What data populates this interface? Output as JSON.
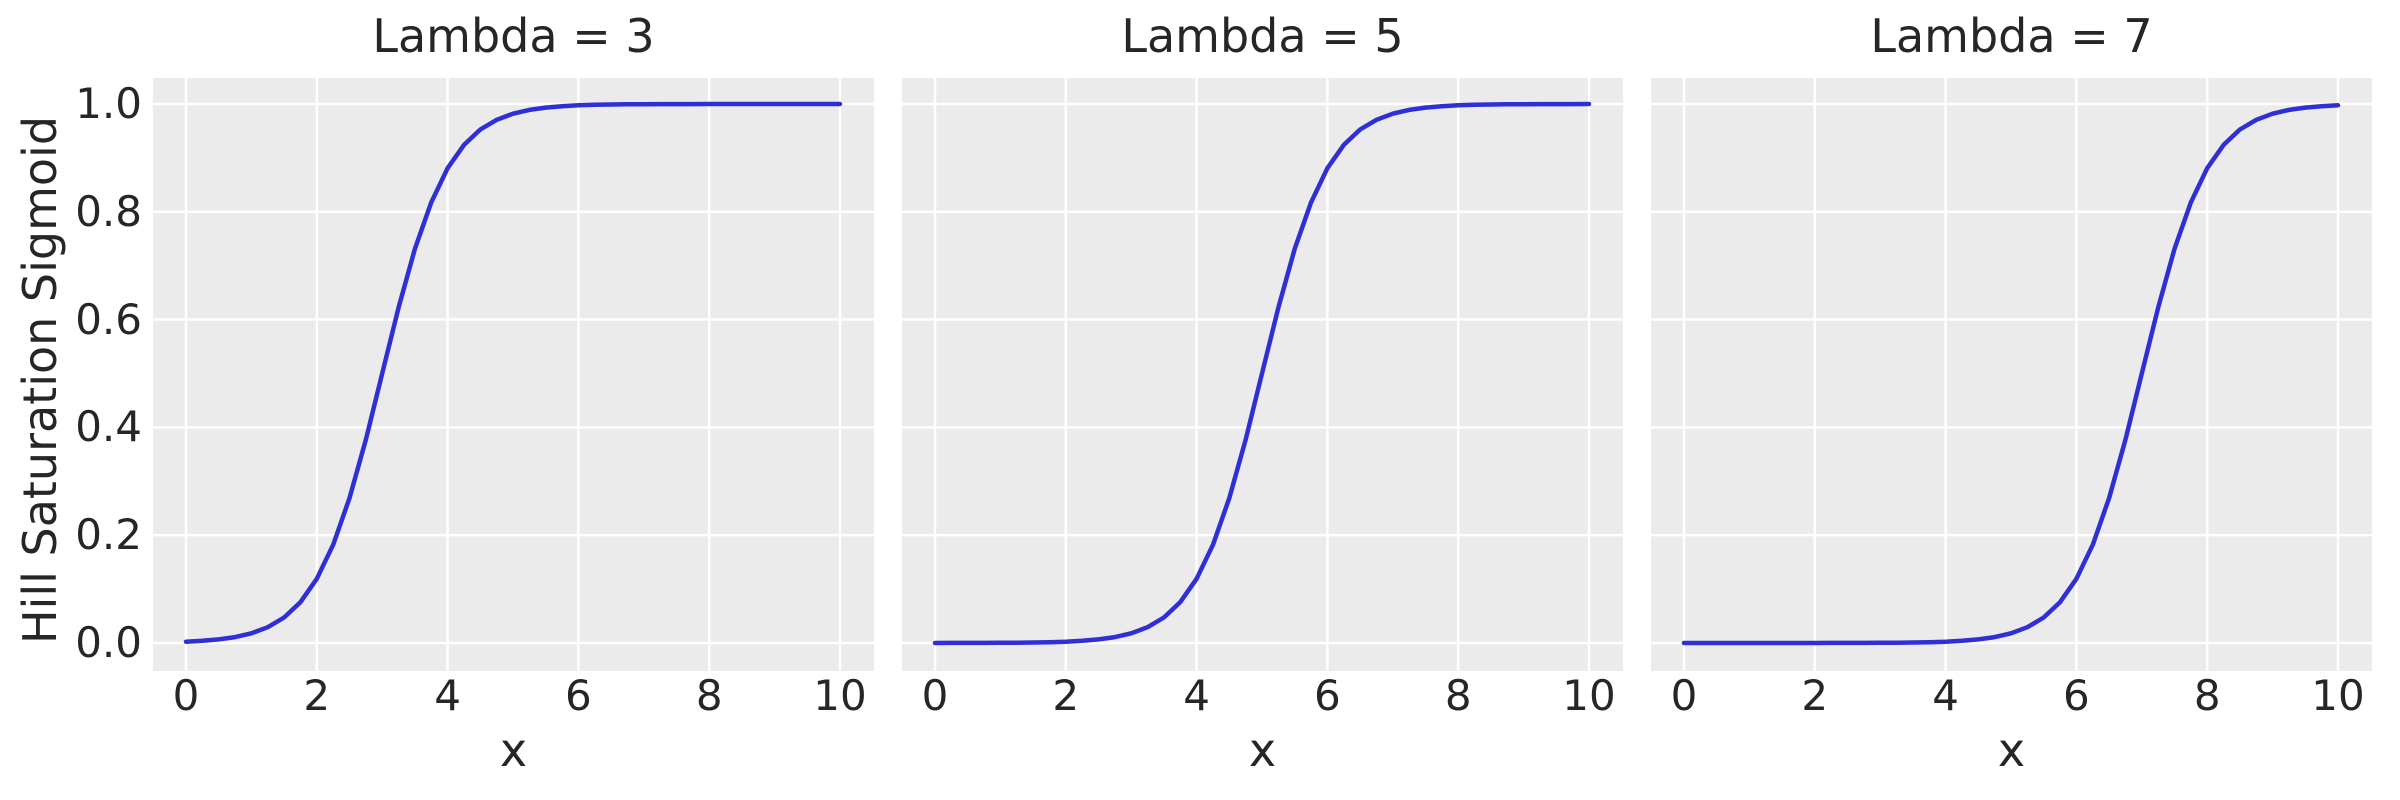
{
  "figure": {
    "xlabel": "x",
    "ylabel": "Hill Saturation Sigmoid"
  },
  "panels": [
    {
      "title": "Lambda = 3"
    },
    {
      "title": "Lambda = 5"
    },
    {
      "title": "Lambda = 7"
    }
  ],
  "axes": {
    "x_tick_labels": [
      "0",
      "2",
      "4",
      "6",
      "8",
      "10"
    ],
    "x_tick_values": [
      0,
      2,
      4,
      6,
      8,
      10
    ],
    "y_tick_labels": [
      "0.0",
      "0.2",
      "0.4",
      "0.6",
      "0.8",
      "1.0"
    ],
    "y_tick_values": [
      0,
      0.2,
      0.4,
      0.6,
      0.8,
      1.0
    ]
  },
  "colors": {
    "figure_background": "#ffffff",
    "plot_background": "#ebebeb",
    "grid": "#ffffff",
    "line": "#2f2fd6",
    "text": "#262626"
  },
  "chart_data": {
    "type": "line",
    "xlabel": "x",
    "ylabel": "Hill Saturation Sigmoid",
    "xlim": [
      0,
      10
    ],
    "ylim": [
      0,
      1
    ],
    "grid": true,
    "legend": false,
    "subplot_titles": [
      "Lambda = 3",
      "Lambda = 5",
      "Lambda = 7"
    ],
    "curve_note": "Saturating sigmoid rising from 0 to 1 with midpoint at x = lambda",
    "x": [
      0,
      0.25,
      0.5,
      0.75,
      1,
      1.25,
      1.5,
      1.75,
      2,
      2.25,
      2.5,
      2.75,
      3,
      3.25,
      3.5,
      3.75,
      4,
      4.25,
      4.5,
      4.75,
      5,
      5.25,
      5.5,
      5.75,
      6,
      6.25,
      6.5,
      6.75,
      7,
      7.25,
      7.5,
      7.75,
      8,
      8.25,
      8.5,
      8.75,
      9,
      9.25,
      9.5,
      9.75,
      10
    ],
    "series": [
      {
        "name": "Lambda = 3",
        "lambda": 3,
        "values": [
          0.0025,
          0.0041,
          0.0067,
          0.011,
          0.018,
          0.0293,
          0.0474,
          0.0759,
          0.1192,
          0.1824,
          0.2689,
          0.3775,
          0.5,
          0.6225,
          0.7311,
          0.8176,
          0.8808,
          0.9241,
          0.9526,
          0.9707,
          0.982,
          0.989,
          0.9933,
          0.9959,
          0.9975,
          0.9985,
          0.9991,
          0.9995,
          0.9997,
          0.9998,
          0.9999,
          0.9999,
          1,
          1,
          1,
          1,
          1,
          1,
          1,
          1,
          1
        ]
      },
      {
        "name": "Lambda = 5",
        "lambda": 5,
        "values": [
          0,
          0.0001,
          0.0001,
          0.0002,
          0.0003,
          0.0006,
          0.0009,
          0.0015,
          0.0025,
          0.0041,
          0.0067,
          0.011,
          0.018,
          0.0293,
          0.0474,
          0.0759,
          0.1192,
          0.1824,
          0.2689,
          0.3775,
          0.5,
          0.6225,
          0.7311,
          0.8176,
          0.8808,
          0.9241,
          0.9526,
          0.9707,
          0.982,
          0.989,
          0.9933,
          0.9959,
          0.9975,
          0.9985,
          0.9991,
          0.9995,
          0.9997,
          0.9998,
          0.9999,
          0.9999,
          1
        ]
      },
      {
        "name": "Lambda = 7",
        "lambda": 7,
        "values": [
          0,
          0,
          0,
          0,
          0,
          0,
          0,
          0,
          0,
          0.0001,
          0.0001,
          0.0002,
          0.0003,
          0.0006,
          0.0009,
          0.0015,
          0.0025,
          0.0041,
          0.0067,
          0.011,
          0.018,
          0.0293,
          0.0474,
          0.0759,
          0.1192,
          0.1824,
          0.2689,
          0.3775,
          0.5,
          0.6225,
          0.7311,
          0.8176,
          0.8808,
          0.9241,
          0.9526,
          0.9707,
          0.982,
          0.989,
          0.9933,
          0.9959,
          0.9975
        ]
      }
    ]
  }
}
